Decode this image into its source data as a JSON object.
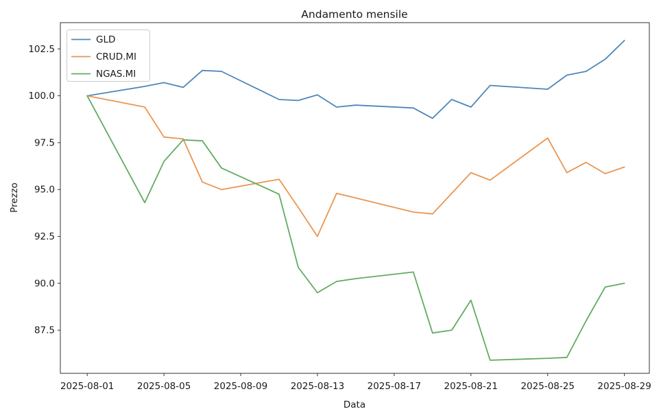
{
  "chart_data": {
    "type": "line",
    "title": "Andamento mensile",
    "xlabel": "Data",
    "ylabel": "Prezzo",
    "x": [
      "2025-08-01",
      "2025-08-04",
      "2025-08-05",
      "2025-08-06",
      "2025-08-07",
      "2025-08-08",
      "2025-08-11",
      "2025-08-12",
      "2025-08-13",
      "2025-08-14",
      "2025-08-15",
      "2025-08-18",
      "2025-08-19",
      "2025-08-20",
      "2025-08-21",
      "2025-08-22",
      "2025-08-25",
      "2025-08-26",
      "2025-08-27",
      "2025-08-28",
      "2025-08-29"
    ],
    "series": [
      {
        "name": "GLD",
        "color": "#4e86b8",
        "values": [
          100.0,
          100.5,
          100.7,
          100.45,
          101.35,
          101.3,
          99.8,
          99.75,
          100.05,
          99.4,
          99.5,
          99.35,
          98.8,
          99.8,
          99.4,
          100.55,
          100.35,
          101.1,
          101.3,
          101.95,
          102.95
        ]
      },
      {
        "name": "CRUD.MI",
        "color": "#ea9550",
        "values": [
          100.0,
          99.4,
          97.8,
          97.7,
          95.4,
          95.0,
          95.55,
          94.05,
          92.5,
          94.8,
          94.55,
          93.8,
          93.7,
          94.8,
          95.9,
          95.5,
          97.75,
          95.9,
          96.45,
          95.85,
          96.2
        ]
      },
      {
        "name": "NGAS.MI",
        "color": "#62ab62",
        "values": [
          100.0,
          94.3,
          96.5,
          97.65,
          97.6,
          96.15,
          94.75,
          90.85,
          89.5,
          90.1,
          90.25,
          90.6,
          87.35,
          87.5,
          89.1,
          85.9,
          86.0,
          86.05,
          88.0,
          89.8,
          90.0
        ]
      }
    ],
    "xticks": [
      "2025-08-01",
      "2025-08-05",
      "2025-08-09",
      "2025-08-13",
      "2025-08-17",
      "2025-08-21",
      "2025-08-25",
      "2025-08-29"
    ],
    "yticks": [
      87.5,
      90.0,
      92.5,
      95.0,
      97.5,
      100.0,
      102.5
    ],
    "ylim": [
      85.2,
      103.9
    ],
    "grid": false,
    "legend_position": "upper left",
    "axis_color": "#333333",
    "legend_border_color": "#cccccc",
    "background_color": "#ffffff"
  }
}
